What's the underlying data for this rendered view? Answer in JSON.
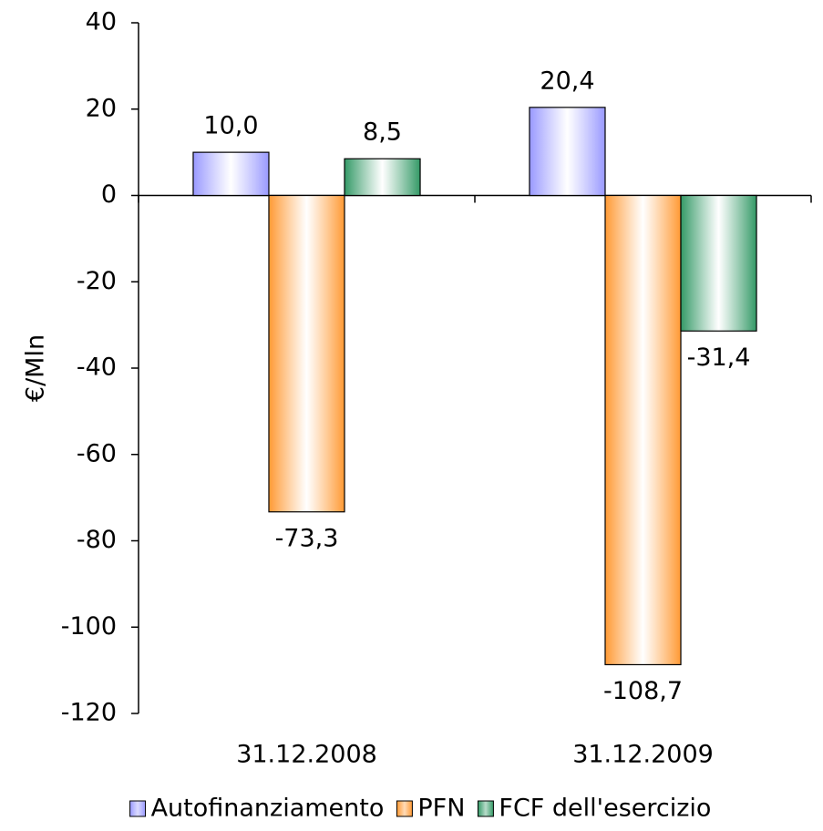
{
  "chart_data": {
    "type": "bar",
    "y_label": "€/Mln",
    "categories": [
      "31.12.2008",
      "31.12.2009"
    ],
    "series": [
      {
        "name": "Autofinanziamento",
        "color": "#9999ff",
        "values": [
          10.0,
          20.4
        ],
        "value_labels": [
          "10,0",
          "20,4"
        ]
      },
      {
        "name": "PFN",
        "color": "#ff9933",
        "values": [
          -73.3,
          -108.7
        ],
        "value_labels": [
          "-73,3",
          "-108,7"
        ]
      },
      {
        "name": "FCF dell'esercizio",
        "color": "#339966",
        "values": [
          8.5,
          -31.4
        ],
        "value_labels": [
          "8,5",
          "-31,4"
        ]
      }
    ],
    "ylim": [
      -120,
      40
    ],
    "yticks": [
      -120,
      -100,
      -80,
      -60,
      -40,
      -20,
      0,
      20,
      40
    ],
    "grid": false,
    "legend": "bottom"
  }
}
